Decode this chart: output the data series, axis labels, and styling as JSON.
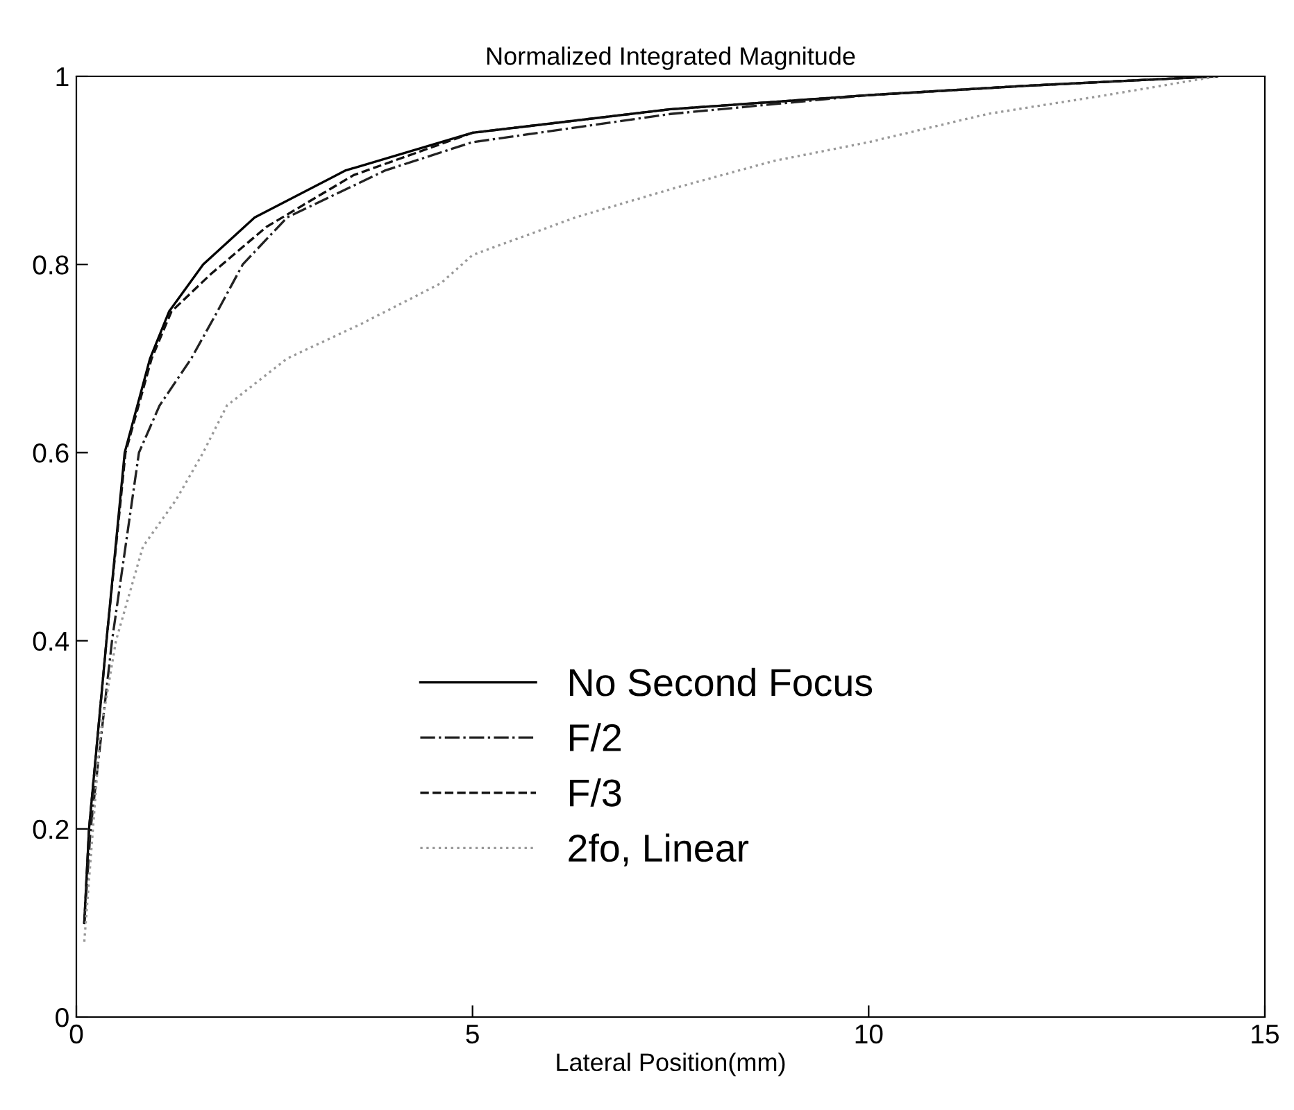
{
  "chart_data": {
    "type": "line",
    "title": "Normalized Integrated Magnitude",
    "xlabel": "Lateral Position(mm)",
    "xlim": [
      0,
      15
    ],
    "xticks": [
      0,
      5,
      10,
      15
    ],
    "ylim": [
      0,
      1
    ],
    "yticks": [
      0,
      0.2,
      0.4,
      0.6,
      0.8,
      1
    ],
    "grid": false,
    "legend": "bottom",
    "marker": "none",
    "series": [
      {
        "name": "No Second Focus",
        "color": "#000000",
        "line_style": "solid",
        "x": [
          0.1,
          0.16,
          0.38,
          0.61,
          0.93,
          1.17,
          1.6,
          2.25,
          3.4,
          5,
          7.5,
          10,
          12,
          14.4
        ],
        "values": [
          0.1,
          0.2,
          0.4,
          0.6,
          0.7,
          0.75,
          0.8,
          0.85,
          0.9,
          0.94,
          0.965,
          0.98,
          0.99,
          1.0
        ]
      },
      {
        "name": "F/2",
        "color": "#222222",
        "line_style": "dashdot",
        "x": [
          0.1,
          0.18,
          0.45,
          0.79,
          1.05,
          1.45,
          1.78,
          2.1,
          2.66,
          3.9,
          5,
          7.5,
          10,
          12,
          14.4
        ],
        "values": [
          0.1,
          0.2,
          0.4,
          0.6,
          0.65,
          0.7,
          0.75,
          0.8,
          0.85,
          0.9,
          0.93,
          0.96,
          0.98,
          0.99,
          1.0
        ]
      },
      {
        "name": "F/3",
        "color": "#111111",
        "line_style": "dashed",
        "x": [
          0.1,
          0.16,
          0.38,
          0.62,
          0.95,
          1.2,
          1.7,
          2.4,
          3.5,
          5,
          7.5,
          10,
          12,
          14.4
        ],
        "values": [
          0.1,
          0.2,
          0.4,
          0.6,
          0.7,
          0.75,
          0.79,
          0.84,
          0.895,
          0.94,
          0.965,
          0.98,
          0.99,
          1.0
        ]
      },
      {
        "name": "2fo, Linear",
        "color": "#999999",
        "line_style": "dotted",
        "x": [
          0.1,
          0.3,
          0.5,
          0.84,
          1.26,
          1.6,
          1.9,
          2.66,
          3.6,
          4.6,
          5,
          6.3,
          7.5,
          8.8,
          10,
          11.5,
          13,
          14.4
        ],
        "values": [
          0.08,
          0.3,
          0.4,
          0.5,
          0.55,
          0.6,
          0.65,
          0.7,
          0.737,
          0.78,
          0.81,
          0.85,
          0.88,
          0.91,
          0.93,
          0.96,
          0.98,
          1.0
        ]
      }
    ]
  }
}
